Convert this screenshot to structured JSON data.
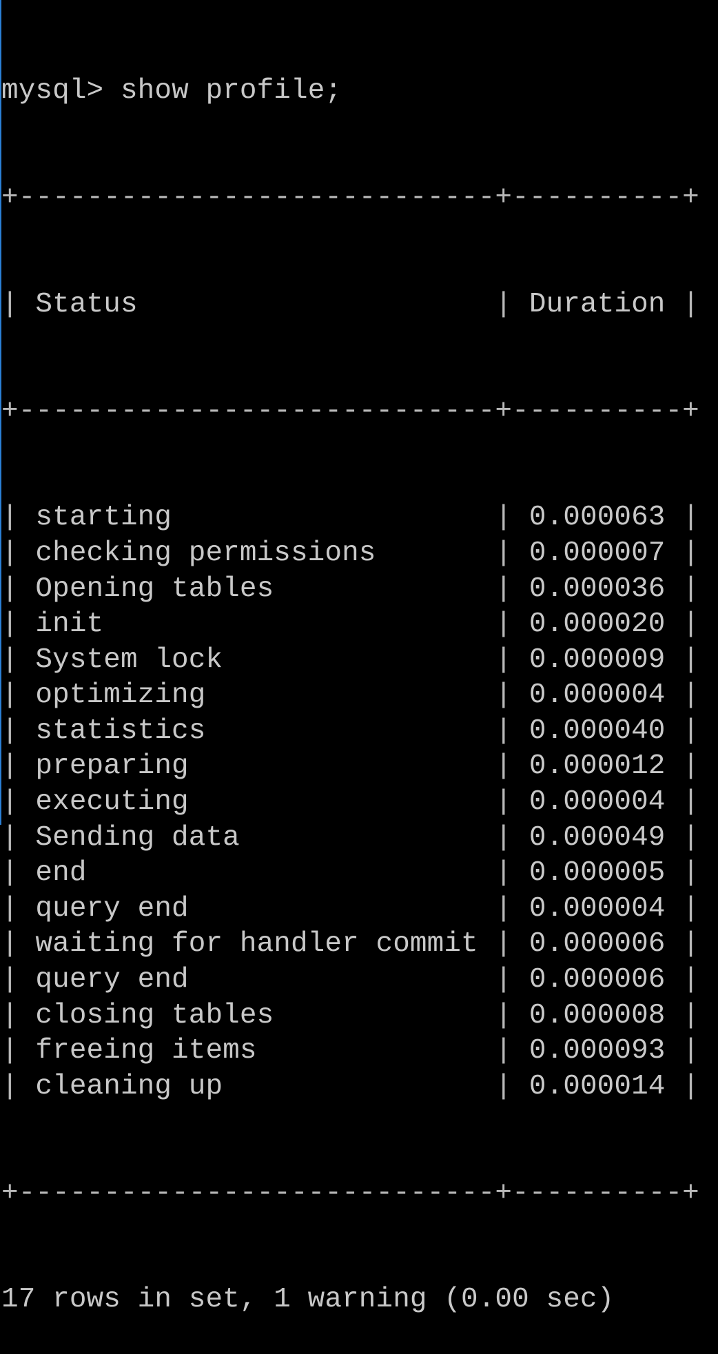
{
  "prompt": "mysql>",
  "command": "show profile;",
  "table": {
    "columns": [
      "Status",
      "Duration"
    ],
    "rows": [
      [
        "starting",
        "0.000063"
      ],
      [
        "checking permissions",
        "0.000007"
      ],
      [
        "Opening tables",
        "0.000036"
      ],
      [
        "init",
        "0.000020"
      ],
      [
        "System lock",
        "0.000009"
      ],
      [
        "optimizing",
        "0.000004"
      ],
      [
        "statistics",
        "0.000040"
      ],
      [
        "preparing",
        "0.000012"
      ],
      [
        "executing",
        "0.000004"
      ],
      [
        "Sending data",
        "0.000049"
      ],
      [
        "end",
        "0.000005"
      ],
      [
        "query end",
        "0.000004"
      ],
      [
        "waiting for handler commit",
        "0.000006"
      ],
      [
        "query end",
        "0.000006"
      ],
      [
        "closing tables",
        "0.000008"
      ],
      [
        "freeing items",
        "0.000093"
      ],
      [
        "cleaning up",
        "0.000014"
      ]
    ]
  },
  "footer": "17 rows in set, 1 warning (0.00 sec)",
  "colors": {
    "background": "#000000",
    "text": "#c8c8c8",
    "window_edge": "#2a7fd4"
  }
}
